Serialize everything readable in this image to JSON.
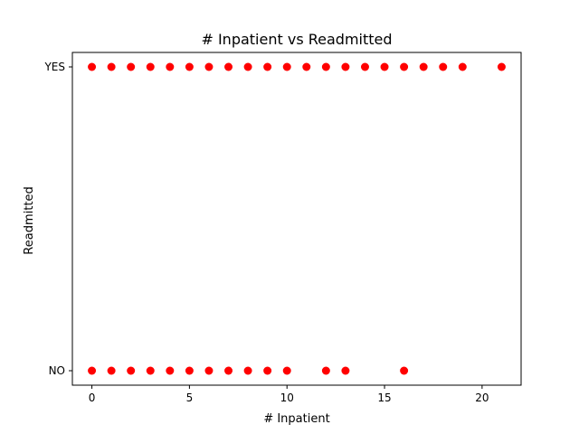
{
  "chart_data": {
    "type": "scatter",
    "title": "# Inpatient vs Readmitted",
    "xlabel": "# Inpatient",
    "ylabel": "Readmitted",
    "xlim": [
      -1,
      22
    ],
    "x_ticks": [
      0,
      5,
      10,
      15,
      20
    ],
    "y_categories": [
      "NO",
      "YES"
    ],
    "marker_color": "#ff0000",
    "grid": false,
    "series": [
      {
        "points": [
          {
            "x": 0,
            "y": "YES"
          },
          {
            "x": 1,
            "y": "YES"
          },
          {
            "x": 2,
            "y": "YES"
          },
          {
            "x": 3,
            "y": "YES"
          },
          {
            "x": 4,
            "y": "YES"
          },
          {
            "x": 5,
            "y": "YES"
          },
          {
            "x": 6,
            "y": "YES"
          },
          {
            "x": 7,
            "y": "YES"
          },
          {
            "x": 8,
            "y": "YES"
          },
          {
            "x": 9,
            "y": "YES"
          },
          {
            "x": 10,
            "y": "YES"
          },
          {
            "x": 11,
            "y": "YES"
          },
          {
            "x": 12,
            "y": "YES"
          },
          {
            "x": 13,
            "y": "YES"
          },
          {
            "x": 14,
            "y": "YES"
          },
          {
            "x": 15,
            "y": "YES"
          },
          {
            "x": 16,
            "y": "YES"
          },
          {
            "x": 17,
            "y": "YES"
          },
          {
            "x": 18,
            "y": "YES"
          },
          {
            "x": 19,
            "y": "YES"
          },
          {
            "x": 21,
            "y": "YES"
          },
          {
            "x": 0,
            "y": "NO"
          },
          {
            "x": 1,
            "y": "NO"
          },
          {
            "x": 2,
            "y": "NO"
          },
          {
            "x": 3,
            "y": "NO"
          },
          {
            "x": 4,
            "y": "NO"
          },
          {
            "x": 5,
            "y": "NO"
          },
          {
            "x": 6,
            "y": "NO"
          },
          {
            "x": 7,
            "y": "NO"
          },
          {
            "x": 8,
            "y": "NO"
          },
          {
            "x": 9,
            "y": "NO"
          },
          {
            "x": 10,
            "y": "NO"
          },
          {
            "x": 12,
            "y": "NO"
          },
          {
            "x": 13,
            "y": "NO"
          },
          {
            "x": 16,
            "y": "NO"
          }
        ]
      }
    ]
  }
}
